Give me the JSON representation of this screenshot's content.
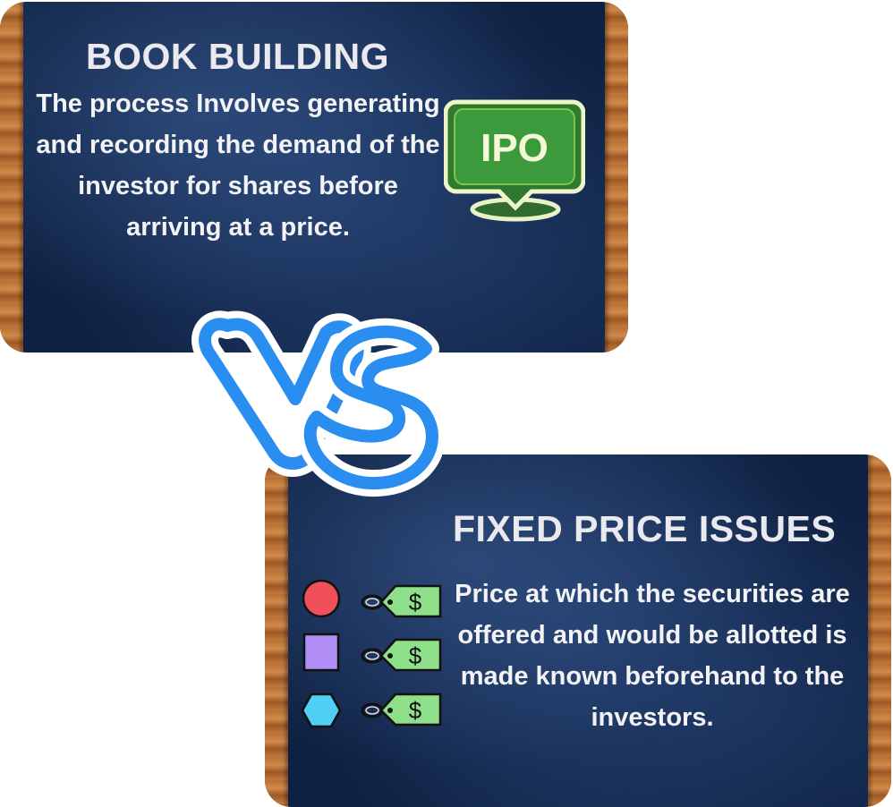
{
  "top_card": {
    "title": "BOOK BUILDING",
    "description": "The process Involves generating and recording the demand of the investor for shares before arriving at a price.",
    "badge": {
      "icon": "ipo-speech-bubble-icon",
      "label": "IPO",
      "color": "#3c9a3c"
    }
  },
  "versus": {
    "icon": "vs-icon",
    "color": "#2a8ef0"
  },
  "bottom_card": {
    "title": "FIXED PRICE ISSUES",
    "description": "Price at which the securities are offered and would be allotted is made known beforehand to the investors.",
    "price_tags": [
      {
        "shape": "red-circle-icon",
        "color": "#f0505a",
        "tag_icon": "price-tag-icon",
        "tag_symbol": "$"
      },
      {
        "shape": "purple-square-icon",
        "color": "#b18ef5",
        "tag_icon": "price-tag-icon",
        "tag_symbol": "$"
      },
      {
        "shape": "cyan-hexagon-icon",
        "color": "#4fcff5",
        "tag_icon": "price-tag-icon",
        "tag_symbol": "$"
      }
    ]
  }
}
